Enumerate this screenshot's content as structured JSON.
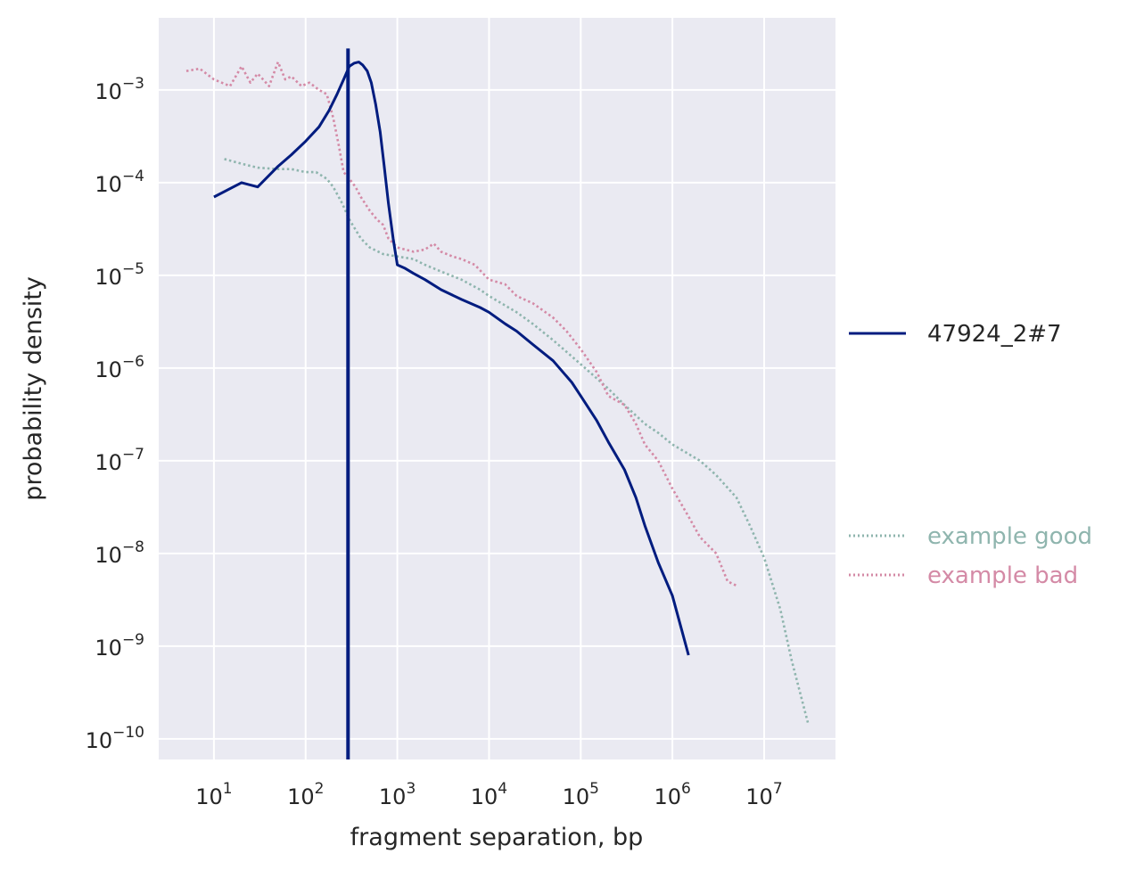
{
  "chart_data": {
    "type": "line",
    "title": "",
    "xlabel": "fragment separation, bp",
    "ylabel": "probability density",
    "xscale": "log",
    "yscale": "log",
    "xlim": [
      2.5,
      60000000
    ],
    "ylim": [
      6e-11,
      0.006
    ],
    "grid": true,
    "background": "#eaeaf2",
    "x_ticks": [
      {
        "base": "10",
        "exp": "1",
        "value": 10
      },
      {
        "base": "10",
        "exp": "2",
        "value": 100
      },
      {
        "base": "10",
        "exp": "3",
        "value": 1000
      },
      {
        "base": "10",
        "exp": "4",
        "value": 10000
      },
      {
        "base": "10",
        "exp": "5",
        "value": 100000
      },
      {
        "base": "10",
        "exp": "6",
        "value": 1000000
      },
      {
        "base": "10",
        "exp": "7",
        "value": 10000000
      }
    ],
    "y_ticks": [
      {
        "base": "10",
        "exp": "−3",
        "value": 0.001
      },
      {
        "base": "10",
        "exp": "−4",
        "value": 0.0001
      },
      {
        "base": "10",
        "exp": "−5",
        "value": 1e-05
      },
      {
        "base": "10",
        "exp": "−6",
        "value": 1e-06
      },
      {
        "base": "10",
        "exp": "−7",
        "value": 1e-07
      },
      {
        "base": "10",
        "exp": "−8",
        "value": 1e-08
      },
      {
        "base": "10",
        "exp": "−9",
        "value": 1e-09
      },
      {
        "base": "10",
        "exp": "−10",
        "value": 1e-10
      }
    ],
    "vertical_line": {
      "x": 290,
      "color": "#001c7f"
    },
    "legend_main": {
      "placement": "right",
      "entries": [
        {
          "label": "47924_2#7",
          "color": "#001c7f",
          "style": "solid"
        }
      ]
    },
    "legend_reference": {
      "placement": "right",
      "entries": [
        {
          "label": "example good",
          "color": "#8fb5ae",
          "style": "dotted"
        },
        {
          "label": "example bad",
          "color": "#d48aa6",
          "style": "dotted"
        }
      ]
    },
    "series": [
      {
        "name": "47924_2#7",
        "color": "#001c7f",
        "style": "solid",
        "x": [
          10,
          20,
          30,
          50,
          70,
          100,
          140,
          180,
          220,
          260,
          300,
          340,
          380,
          420,
          470,
          520,
          580,
          650,
          720,
          800,
          900,
          1000,
          1200,
          1500,
          2000,
          3000,
          5000,
          8000,
          10000,
          15000,
          20000,
          30000,
          50000,
          80000,
          100000,
          150000,
          200000,
          300000,
          400000,
          500000,
          700000,
          1000000,
          1500000
        ],
        "y": [
          7e-05,
          0.0001,
          9e-05,
          0.00015,
          0.0002,
          0.00028,
          0.0004,
          0.0006,
          0.0009,
          0.0013,
          0.0018,
          0.00195,
          0.002,
          0.00185,
          0.0016,
          0.0012,
          0.0007,
          0.00035,
          0.00015,
          6e-05,
          2.5e-05,
          1.3e-05,
          1.2e-05,
          1.05e-05,
          9e-06,
          7e-06,
          5.5e-06,
          4.5e-06,
          4e-06,
          3e-06,
          2.5e-06,
          1.8e-06,
          1.2e-06,
          7e-07,
          5e-07,
          2.7e-07,
          1.6e-07,
          8e-08,
          4e-08,
          2e-08,
          8e-09,
          3.5e-09,
          8e-10
        ]
      },
      {
        "name": "example good",
        "color": "#8fb5ae",
        "style": "dotted",
        "x": [
          13,
          20,
          30,
          50,
          70,
          100,
          130,
          170,
          200,
          250,
          300,
          400,
          500,
          700,
          1000,
          1500,
          2000,
          3000,
          5000,
          8000,
          10000,
          20000,
          30000,
          50000,
          100000,
          200000,
          300000,
          500000,
          700000,
          1000000,
          2000000,
          3000000,
          5000000,
          7000000,
          10000000,
          15000000,
          20000000,
          30000000
        ],
        "y": [
          0.00018,
          0.00016,
          0.000145,
          0.00014,
          0.00014,
          0.00013,
          0.00013,
          0.00011,
          9e-05,
          6e-05,
          4e-05,
          2.5e-05,
          2e-05,
          1.7e-05,
          1.6e-05,
          1.5e-05,
          1.3e-05,
          1.1e-05,
          9e-06,
          7e-06,
          6e-06,
          4e-06,
          3e-06,
          2e-06,
          1.1e-06,
          6e-07,
          4e-07,
          2.5e-07,
          2e-07,
          1.5e-07,
          1e-07,
          7e-08,
          4e-08,
          2e-08,
          9e-09,
          2.5e-09,
          7e-10,
          1.5e-10
        ]
      },
      {
        "name": "example bad",
        "color": "#d48aa6",
        "style": "dotted",
        "x": [
          5,
          7,
          10,
          15,
          20,
          25,
          30,
          40,
          50,
          60,
          70,
          90,
          110,
          140,
          170,
          200,
          230,
          260,
          300,
          350,
          400,
          500,
          600,
          700,
          800,
          1000,
          1500,
          2000,
          2500,
          3000,
          4000,
          5000,
          7000,
          10000,
          15000,
          20000,
          30000,
          50000,
          70000,
          100000,
          150000,
          200000,
          300000,
          400000,
          500000,
          700000,
          1000000,
          1500000,
          2000000,
          3000000,
          4000000,
          5000000
        ],
        "y": [
          0.0016,
          0.0017,
          0.0013,
          0.0011,
          0.0018,
          0.0012,
          0.0015,
          0.0011,
          0.002,
          0.0013,
          0.0014,
          0.0011,
          0.0012,
          0.001,
          0.0009,
          0.0005,
          0.00025,
          0.00013,
          0.00011,
          9e-05,
          7e-05,
          5e-05,
          4e-05,
          3.5e-05,
          2.5e-05,
          2e-05,
          1.8e-05,
          1.9e-05,
          2.2e-05,
          1.8e-05,
          1.6e-05,
          1.5e-05,
          1.3e-05,
          9e-06,
          8e-06,
          6e-06,
          5e-06,
          3.5e-06,
          2.5e-06,
          1.6e-06,
          9e-07,
          5e-07,
          4e-07,
          2.5e-07,
          1.5e-07,
          1e-07,
          5e-08,
          2.5e-08,
          1.5e-08,
          1e-08,
          5e-09,
          4.5e-09
        ]
      }
    ]
  }
}
